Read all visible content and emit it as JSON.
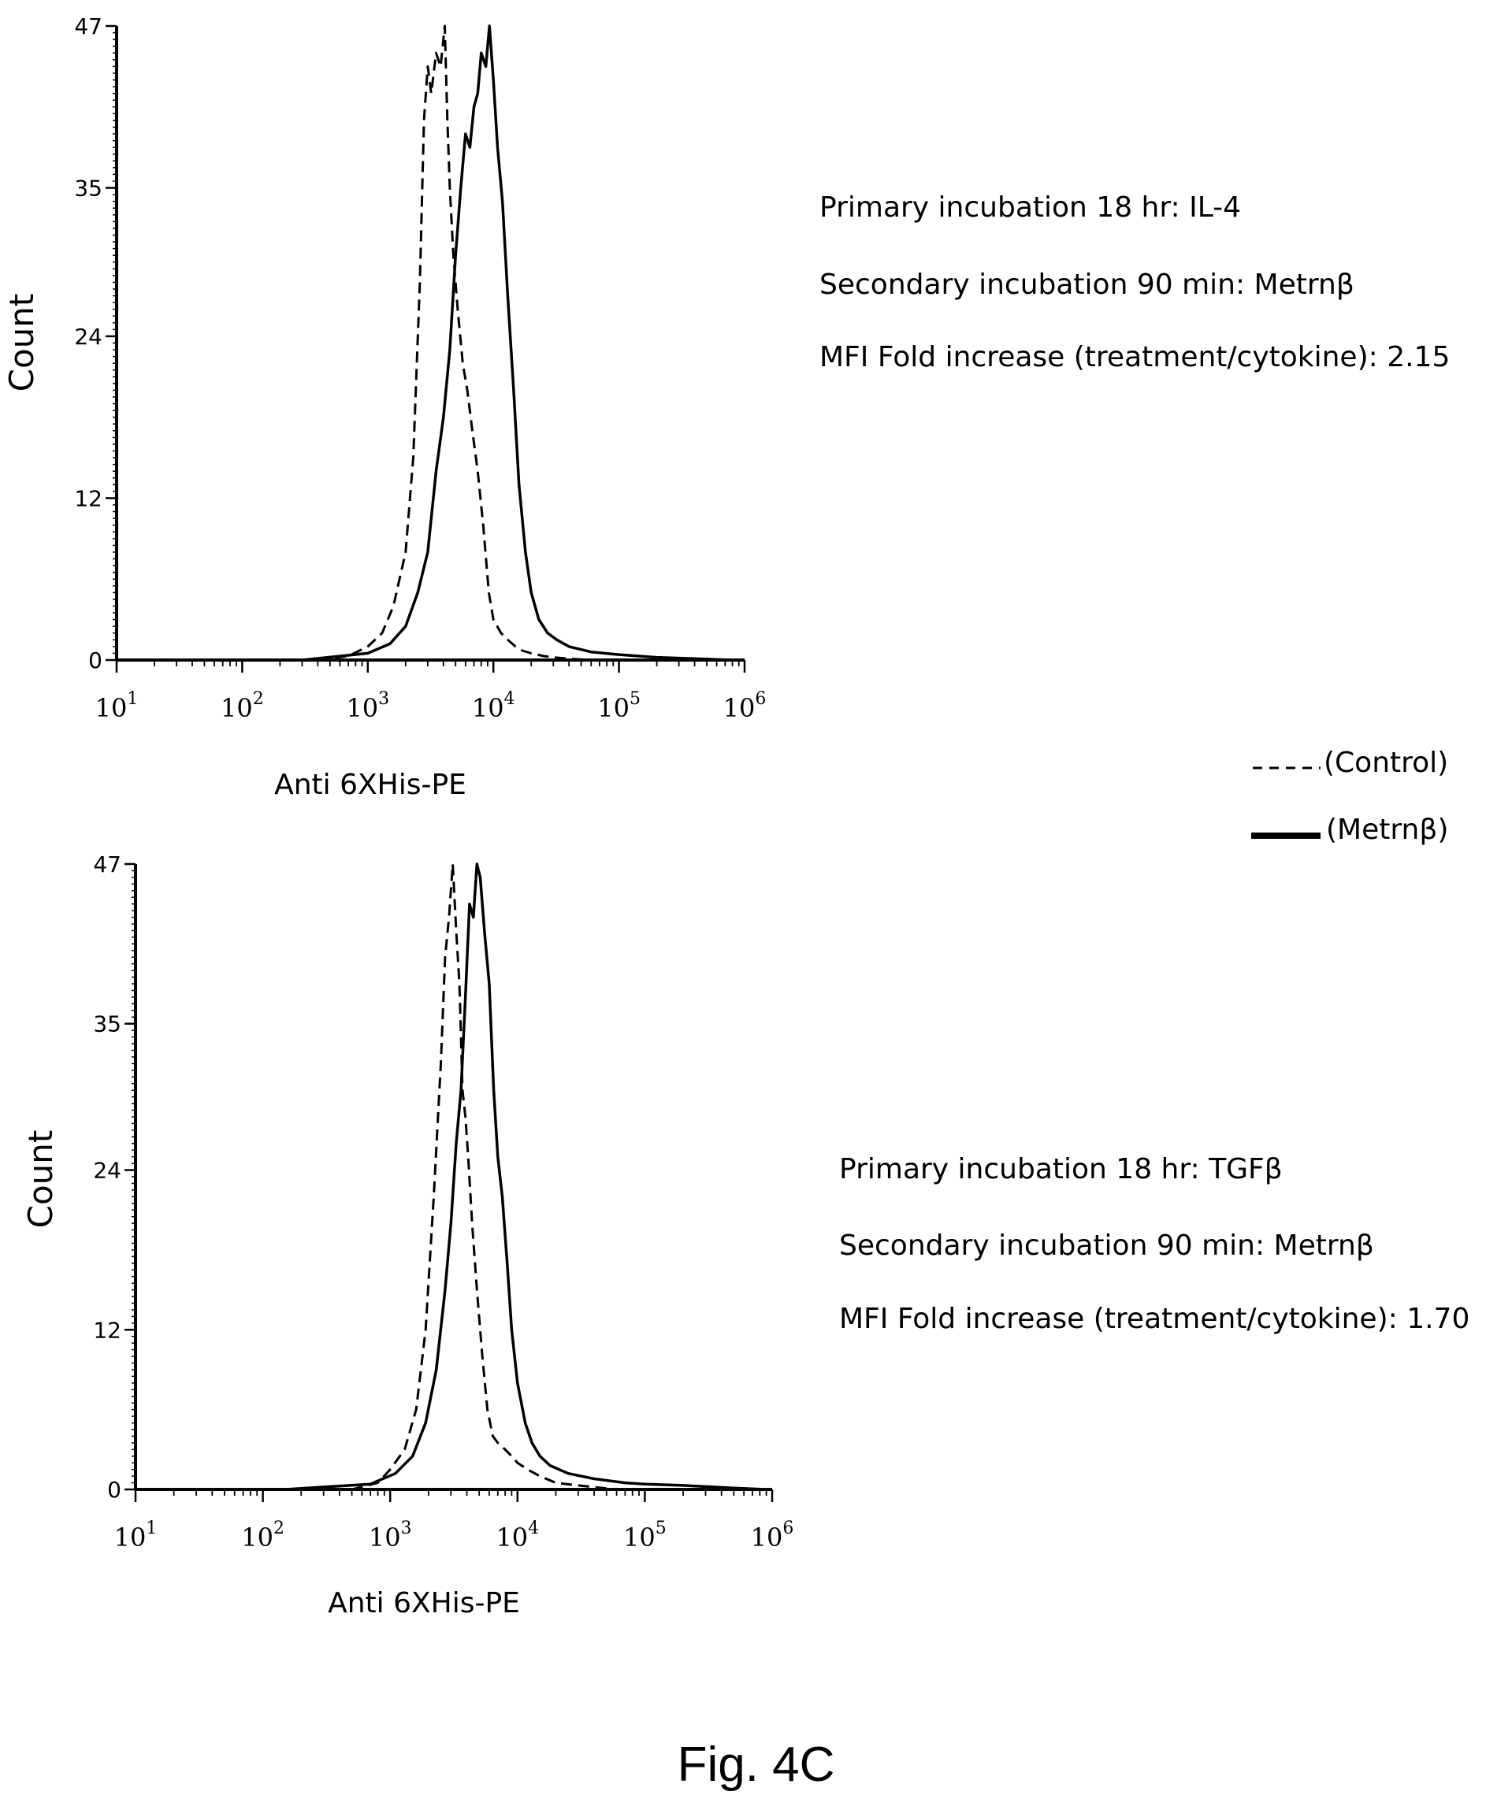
{
  "figure_label": "Fig. 4C",
  "legend": {
    "entries": [
      {
        "label": "(Control)",
        "style": "dashed"
      },
      {
        "label": "(Metrnβ)",
        "style": "solid"
      }
    ]
  },
  "panels": [
    {
      "info": [
        "Primary incubation 18 hr: IL-4",
        "Secondary incubation 90 min: Metrnβ",
        "MFI Fold increase (treatment/cytokine): 2.15"
      ]
    },
    {
      "info": [
        "Primary incubation 18 hr: TGFβ",
        "Secondary incubation 90 min: Metrnβ",
        "MFI Fold increase (treatment/cytokine): 1.70"
      ]
    }
  ],
  "chart_data": [
    {
      "type": "line",
      "xlabel": "Anti 6XHis-PE",
      "ylabel": "Count",
      "x_scale": "log",
      "xlim": [
        10,
        1000000
      ],
      "ylim": [
        0,
        47
      ],
      "x_ticks": [
        10,
        100,
        1000,
        10000,
        100000,
        1000000
      ],
      "x_tick_labels": [
        {
          "base": "10",
          "exp": "1"
        },
        {
          "base": "10",
          "exp": "2"
        },
        {
          "base": "10",
          "exp": "3"
        },
        {
          "base": "10",
          "exp": "4"
        },
        {
          "base": "10",
          "exp": "5"
        },
        {
          "base": "10",
          "exp": "6"
        }
      ],
      "y_ticks": [
        0,
        12,
        24,
        35,
        47
      ],
      "grid": false,
      "series": [
        {
          "name": "(Control)",
          "style": "dashed",
          "x": [
            400,
            700,
            1000,
            1300,
            1600,
            2000,
            2300,
            2600,
            2800,
            3000,
            3200,
            3500,
            3800,
            4100,
            4300,
            4500,
            4800,
            5200,
            5700,
            6200,
            6800,
            7500,
            8300,
            9200,
            10000,
            11500,
            13000,
            15000,
            17000,
            20000,
            25000,
            30000,
            40000,
            60000
          ],
          "y": [
            0,
            0.3,
            1,
            2,
            4,
            8,
            15,
            28,
            40,
            44,
            42,
            45,
            44,
            47,
            40,
            35,
            30,
            26,
            22,
            20,
            17,
            14,
            10,
            5,
            3,
            2,
            1.5,
            1,
            0.7,
            0.5,
            0.3,
            0.2,
            0.1,
            0
          ]
        },
        {
          "name": "(Metrnβ)",
          "style": "solid",
          "x": [
            300,
            1000,
            1500,
            2000,
            2500,
            3000,
            3500,
            4000,
            4500,
            5000,
            5500,
            6000,
            6500,
            7000,
            7500,
            8000,
            8700,
            9300,
            10000,
            10800,
            11800,
            13000,
            14500,
            16000,
            18000,
            20000,
            23000,
            27000,
            32000,
            40000,
            60000,
            100000,
            200000,
            400000,
            800000
          ],
          "y": [
            0,
            0.5,
            1.2,
            2.5,
            5,
            8,
            14,
            18,
            23,
            30,
            35,
            39,
            38,
            41,
            42,
            45,
            44,
            47,
            43,
            38,
            34,
            27,
            20,
            13,
            8,
            5,
            3,
            2,
            1.5,
            1,
            0.6,
            0.4,
            0.2,
            0.1,
            0
          ]
        }
      ]
    },
    {
      "type": "line",
      "xlabel": "Anti 6XHis-PE",
      "ylabel": "Count",
      "x_scale": "log",
      "xlim": [
        10,
        1000000
      ],
      "ylim": [
        0,
        47
      ],
      "x_ticks": [
        10,
        100,
        1000,
        10000,
        100000,
        1000000
      ],
      "x_tick_labels": [
        {
          "base": "10",
          "exp": "1"
        },
        {
          "base": "10",
          "exp": "2"
        },
        {
          "base": "10",
          "exp": "3"
        },
        {
          "base": "10",
          "exp": "4"
        },
        {
          "base": "10",
          "exp": "5"
        },
        {
          "base": "10",
          "exp": "6"
        }
      ],
      "y_ticks": [
        0,
        12,
        24,
        35,
        47
      ],
      "grid": false,
      "series": [
        {
          "name": "(Control)",
          "style": "dashed",
          "x": [
            500,
            800,
            1000,
            1300,
            1600,
            1900,
            2200,
            2500,
            2700,
            2900,
            3100,
            3300,
            3500,
            3700,
            3900,
            4100,
            4400,
            4800,
            5300,
            5800,
            6400,
            7000,
            8000,
            9000,
            10000,
            12000,
            15000,
            20000,
            30000,
            60000
          ],
          "y": [
            0,
            0.5,
            1.5,
            3,
            6,
            12,
            22,
            32,
            40,
            43,
            47,
            42,
            38,
            30,
            28,
            25,
            20,
            15,
            10,
            6,
            4,
            3.5,
            3,
            2.5,
            2,
            1.5,
            1,
            0.5,
            0.3,
            0
          ]
        },
        {
          "name": "(Metrnβ)",
          "style": "solid",
          "x": [
            150,
            700,
            1100,
            1500,
            1900,
            2300,
            2700,
            3000,
            3300,
            3600,
            3900,
            4200,
            4500,
            4800,
            5100,
            5500,
            6000,
            6500,
            7000,
            7600,
            8300,
            9000,
            10000,
            11500,
            13000,
            15000,
            18000,
            25000,
            40000,
            70000,
            100000,
            200000,
            500000,
            900000
          ],
          "y": [
            0,
            0.4,
            1.2,
            2.5,
            5,
            9,
            15,
            20,
            26,
            30,
            37,
            44,
            43,
            47,
            46,
            42,
            38,
            30,
            25,
            22,
            17,
            12,
            8,
            5,
            3.5,
            2.5,
            1.8,
            1.2,
            0.8,
            0.5,
            0.4,
            0.3,
            0.1,
            0
          ]
        }
      ]
    }
  ]
}
